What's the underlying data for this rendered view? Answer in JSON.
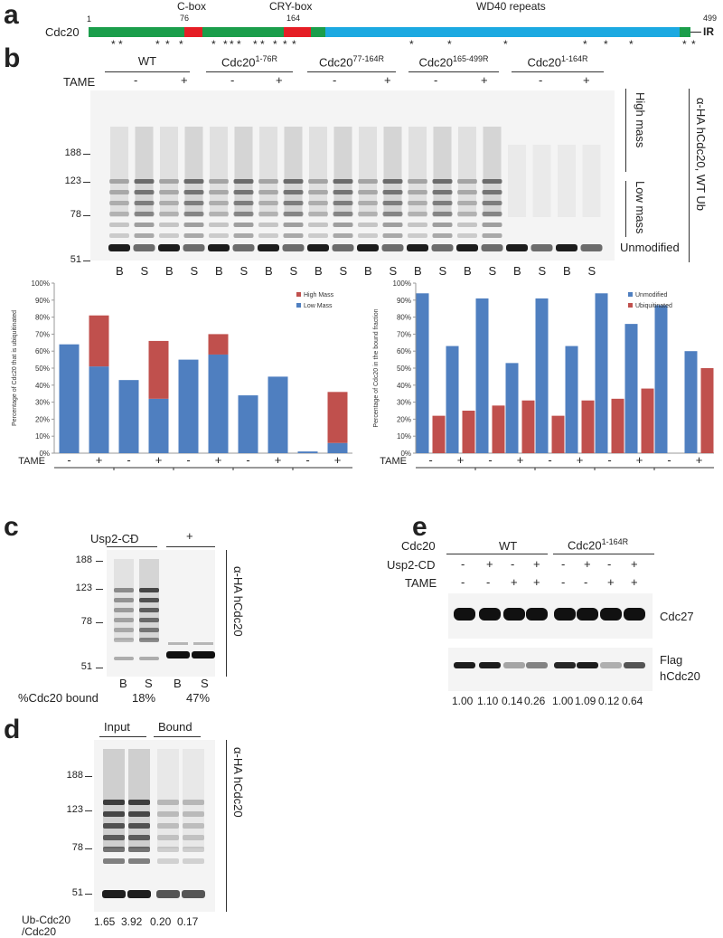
{
  "panels": {
    "a": "a",
    "b": "b",
    "c": "c",
    "d": "d",
    "e": "e"
  },
  "panel_a": {
    "protein": "Cdc20",
    "start": "1",
    "pos_76": "76",
    "pos_164": "164",
    "end": "499",
    "cbox": "C-box",
    "crybox": "CRY-box",
    "wd40": "WD40 repeats",
    "ir": "IR",
    "asterisk": "*"
  },
  "panel_b": {
    "groups": [
      {
        "label": "WT",
        "sup": ""
      },
      {
        "label": "Cdc20",
        "sup": "1-76R"
      },
      {
        "label": "Cdc20",
        "sup": "77-164R"
      },
      {
        "label": "Cdc20",
        "sup": "165-499R"
      },
      {
        "label": "Cdc20",
        "sup": "1-164R"
      }
    ],
    "tame": "TAME",
    "minus": "-",
    "plus": "+",
    "lanes": [
      "B",
      "S",
      "B",
      "S",
      "B",
      "S",
      "B",
      "S",
      "B",
      "S",
      "B",
      "S",
      "B",
      "S",
      "B",
      "S",
      "B",
      "S",
      "B",
      "S"
    ],
    "markers": [
      "188",
      "123",
      "78",
      "51"
    ],
    "high_mass": "High mass",
    "low_mass": "Low mass",
    "unmodified": "Unmodified",
    "antibody": "α-HA hCdc20, WT Ub"
  },
  "chart_data": [
    {
      "type": "bar",
      "stacked": true,
      "ylabel": "Percentage of Cdc20 that is ubiquitinated",
      "yticks": [
        "0%",
        "10%",
        "20%",
        "30%",
        "40%",
        "50%",
        "60%",
        "70%",
        "80%",
        "90%",
        "100%"
      ],
      "ylim": [
        0,
        100
      ],
      "x_tame": [
        "-",
        "+",
        "-",
        "+",
        "-",
        "+",
        "-",
        "+",
        "-",
        "+"
      ],
      "groups": [
        "WT",
        "1-76R",
        "77-164R",
        "165-499R",
        "1-164R"
      ],
      "tame_label": "TAME",
      "legend": [
        "High Mass",
        "Low Mass"
      ],
      "series": [
        {
          "name": "Low Mass",
          "color": "#4f7fc0",
          "values": [
            64,
            51,
            43,
            32,
            55,
            58,
            34,
            45,
            1,
            6
          ]
        },
        {
          "name": "High Mass",
          "color": "#c0504d",
          "values": [
            0,
            30,
            0,
            34,
            0,
            12,
            0,
            0,
            0,
            30
          ]
        }
      ]
    },
    {
      "type": "bar",
      "ylabel": "Percentage of Cdc20 in the bound fraction",
      "yticks": [
        "0%",
        "10%",
        "20%",
        "30%",
        "40%",
        "50%",
        "60%",
        "70%",
        "80%",
        "90%",
        "100%"
      ],
      "ylim": [
        0,
        100
      ],
      "x_tame": [
        "-",
        "+",
        "-",
        "+",
        "-",
        "+",
        "-",
        "+",
        "-",
        "+"
      ],
      "groups": [
        "WT",
        "1-76R",
        "77-164R",
        "165-499R",
        "1-164R"
      ],
      "tame_label": "TAME",
      "legend": [
        "Unmodified",
        "Ubiquitinated"
      ],
      "series": [
        {
          "name": "Unmodified",
          "color": "#4f7fc0",
          "values": [
            94,
            63,
            91,
            53,
            91,
            63,
            94,
            76,
            87,
            60
          ]
        },
        {
          "name": "Ubiquitinated",
          "color": "#c0504d",
          "values": [
            22,
            25,
            28,
            31,
            22,
            31,
            32,
            38,
            0,
            50
          ]
        }
      ]
    }
  ],
  "panel_c": {
    "usp2": "Usp2-CD",
    "minus": "-",
    "plus": "+",
    "markers": [
      "188",
      "123",
      "78",
      "51"
    ],
    "lanes": [
      "B",
      "S",
      "B",
      "S"
    ],
    "bound_label": "%Cdc20 bound",
    "bound_values": [
      "18%",
      "47%"
    ],
    "antibody": "α-HA hCdc20"
  },
  "panel_d": {
    "input": "Input",
    "bound": "Bound",
    "markers": [
      "188",
      "123",
      "78",
      "51"
    ],
    "ratio_label_1": "Ub-Cdc20",
    "ratio_label_2": "/Cdc20",
    "ratios": [
      "1.65",
      "3.92",
      "0.20",
      "0.17"
    ],
    "antibody": "α-HA hCdc20"
  },
  "panel_e": {
    "cdc20": "Cdc20",
    "wt": "WT",
    "mut": "Cdc20",
    "mut_sup": "1-164R",
    "usp2": "Usp2-CD",
    "tame": "TAME",
    "usp2_row": [
      "-",
      "+",
      "-",
      "+",
      "-",
      "+",
      "-",
      "+"
    ],
    "tame_row": [
      "-",
      "-",
      "+",
      "+",
      "-",
      "-",
      "+",
      "+"
    ],
    "cdc27": "Cdc27",
    "flag_1": "Flag",
    "flag_2": "hCdc20",
    "quant": [
      "1.00",
      "1.10",
      "0.14",
      "0.26",
      "1.00",
      "1.09",
      "0.12",
      "0.64"
    ]
  }
}
